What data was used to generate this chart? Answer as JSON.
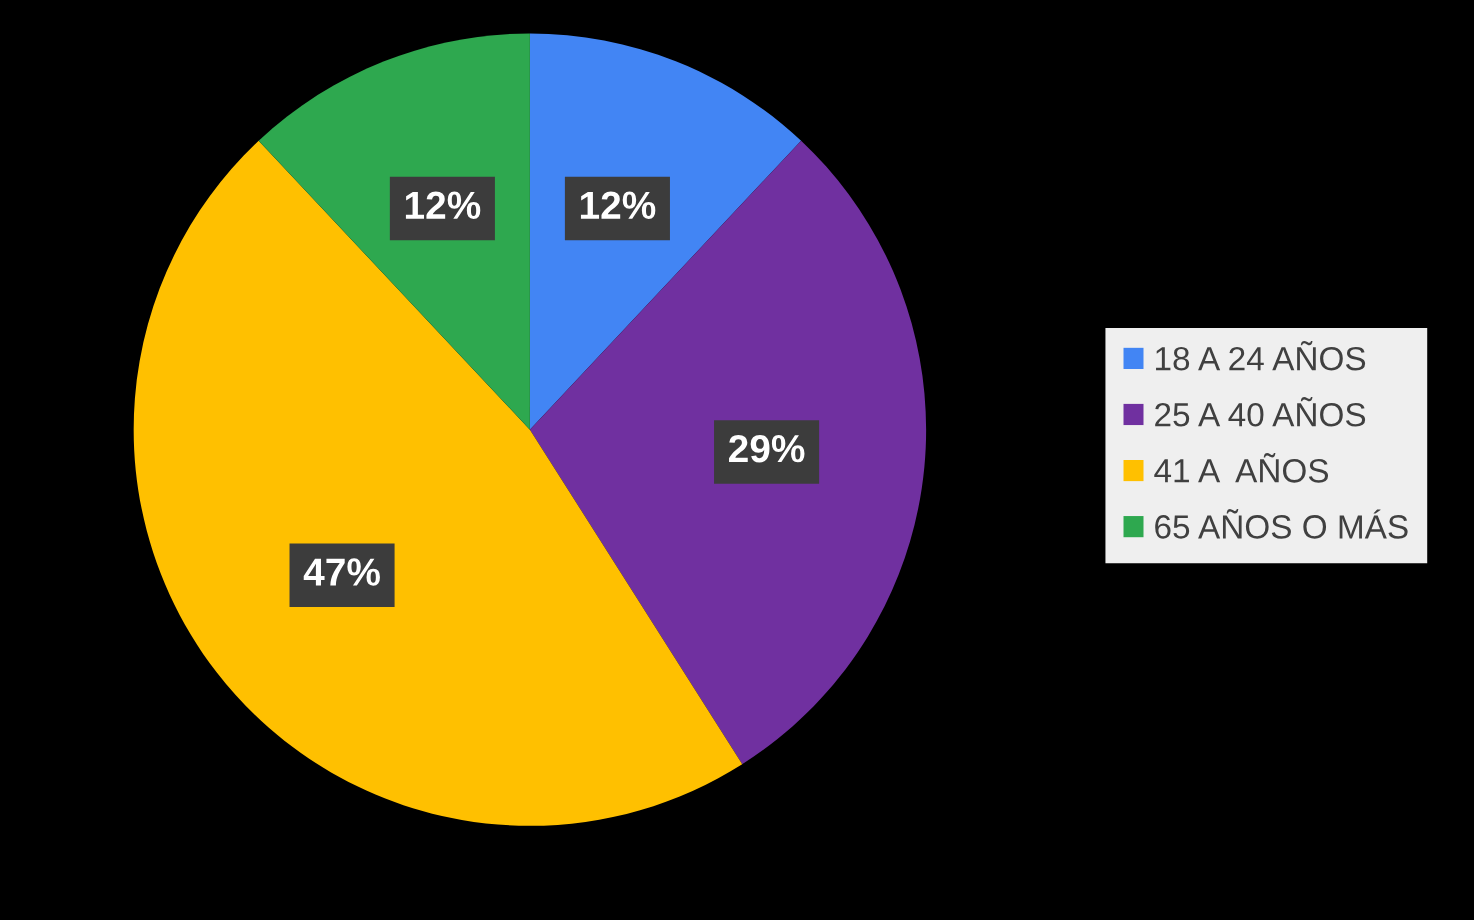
{
  "chart_data": {
    "type": "pie",
    "categories": [
      "18 A 24 AÑOS",
      "25 A 40 AÑOS",
      "41 A  AÑOS",
      "65 AÑOS O MÁS"
    ],
    "values": [
      12,
      29,
      47,
      12
    ],
    "colors": [
      "#4285f4",
      "#7030a0",
      "#ffc000",
      "#2ea84f"
    ],
    "value_labels": [
      "12%",
      "29%",
      "47%",
      "12%"
    ],
    "legend": "right"
  }
}
